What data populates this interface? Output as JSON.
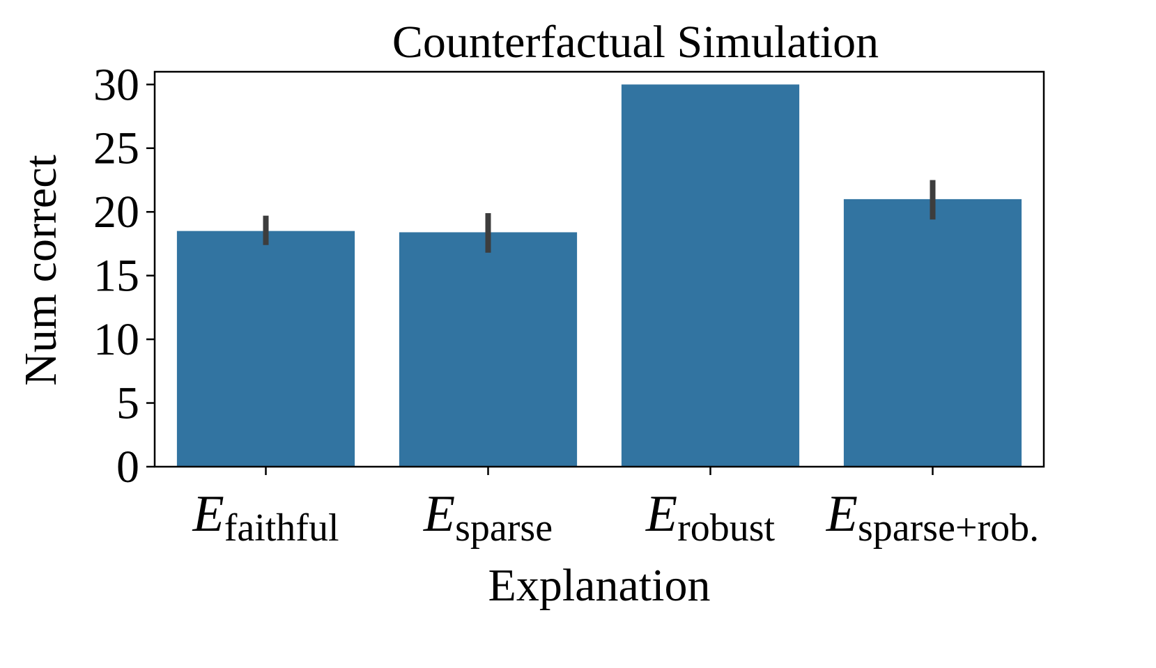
{
  "chart_data": {
    "type": "bar",
    "title": "Counterfactual Simulation",
    "xlabel": "Explanation",
    "ylabel": "Num correct",
    "ylim": [
      0,
      31
    ],
    "yticks": [
      0,
      5,
      10,
      15,
      20,
      25,
      30
    ],
    "grid": false,
    "categories": [
      {
        "main": "E",
        "sub": "faithful"
      },
      {
        "main": "E",
        "sub": "sparse"
      },
      {
        "main": "E",
        "sub": "robust"
      },
      {
        "main": "E",
        "sub": "sparse+rob."
      }
    ],
    "values": [
      18.5,
      18.4,
      30,
      21
    ],
    "error_bars": [
      {
        "low": 17.4,
        "high": 19.7
      },
      {
        "low": 16.8,
        "high": 19.9
      },
      {
        "low": 30,
        "high": 30
      },
      {
        "low": 19.4,
        "high": 22.5
      }
    ],
    "colors": {
      "bar": "#3274a1",
      "error": "#3d3d3d",
      "axis": "#000000"
    }
  }
}
